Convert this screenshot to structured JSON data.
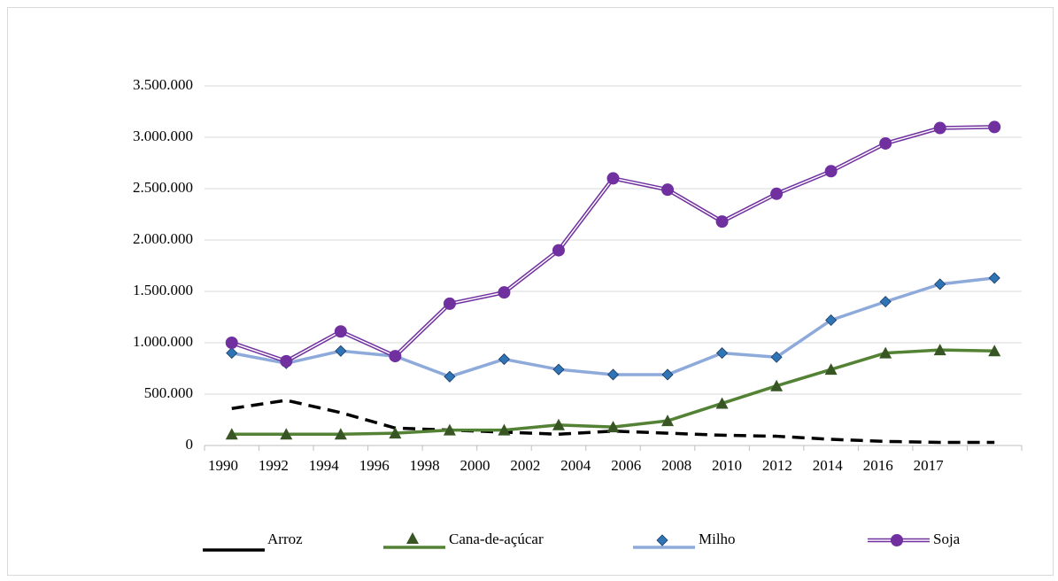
{
  "chart_data": {
    "type": "line",
    "categories": [
      "1990",
      "1992",
      "1994",
      "1996",
      "1998",
      "2000",
      "2002",
      "2004",
      "2006",
      "2008",
      "2010",
      "2012",
      "2014",
      "2016",
      "2017"
    ],
    "ylim": [
      0,
      3500000
    ],
    "yticks": [
      0,
      {
        "value": 500000,
        "label": "500.000"
      },
      {
        "value": 1000000,
        "label": "1.000.000"
      },
      {
        "value": 1500000,
        "label": "1.500.000"
      },
      {
        "value": 2000000,
        "label": "2.000.000"
      },
      {
        "value": 2500000,
        "label": "2.500.000"
      },
      {
        "value": 3000000,
        "label": "3.000.000"
      },
      {
        "value": 3500000,
        "label": "3.500.000"
      }
    ],
    "grid": true,
    "legend": "bottom",
    "series": [
      {
        "name": "Arroz",
        "color": "#000000",
        "dash": true,
        "marker": "none",
        "values": [
          360000,
          440000,
          320000,
          170000,
          150000,
          130000,
          110000,
          140000,
          120000,
          100000,
          90000,
          60000,
          40000,
          30000,
          30000
        ]
      },
      {
        "name": "Cana-de-açúcar",
        "color": "#548235",
        "marker": "triangle",
        "marker_color": "#375623",
        "values": [
          110000,
          110000,
          110000,
          120000,
          150000,
          150000,
          200000,
          180000,
          240000,
          410000,
          580000,
          740000,
          900000,
          930000,
          920000
        ]
      },
      {
        "name": "Milho",
        "color": "#8eaadb",
        "marker": "diamond",
        "marker_color": "#2e75b6",
        "values": [
          900000,
          800000,
          920000,
          870000,
          670000,
          840000,
          740000,
          690000,
          690000,
          900000,
          860000,
          1220000,
          1400000,
          1570000,
          1630000
        ]
      },
      {
        "name": "Soja",
        "color": "#7030a0",
        "double": true,
        "marker": "circle",
        "marker_color": "#7030a0",
        "values": [
          1000000,
          820000,
          1110000,
          870000,
          1380000,
          1490000,
          1900000,
          2600000,
          2490000,
          2180000,
          2450000,
          2670000,
          2940000,
          3090000,
          3100000
        ]
      }
    ]
  }
}
